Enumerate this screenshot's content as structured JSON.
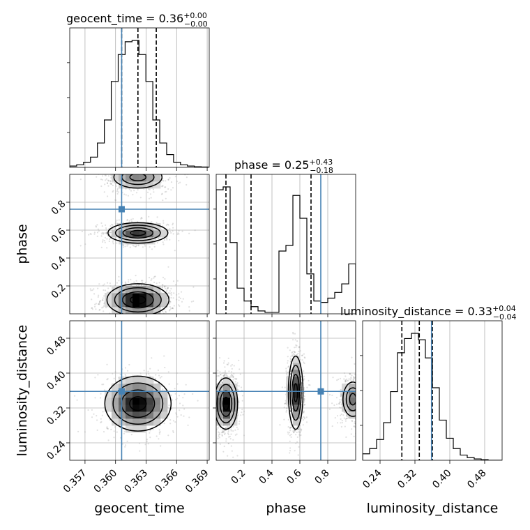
{
  "chart_data": {
    "type": "corner",
    "parameters": [
      "geocent_time",
      "phase",
      "luminosity_distance"
    ],
    "axis_labels": [
      "geocent_time",
      "phase",
      "luminosity_distance"
    ],
    "ranges": [
      [
        0.3555,
        0.3692
      ],
      [
        0.0,
        1.0
      ],
      [
        0.2,
        0.52
      ]
    ],
    "ticks": [
      {
        "values": [
          0.357,
          0.36,
          0.363,
          0.366,
          0.369
        ],
        "labels": [
          "0.357",
          "0.360",
          "0.363",
          "0.366",
          "0.369"
        ]
      },
      {
        "values": [
          0.2,
          0.4,
          0.6,
          0.8
        ],
        "labels": [
          "0.2",
          "0.4",
          "0.6",
          "0.8"
        ]
      },
      {
        "values": [
          0.24,
          0.32,
          0.4,
          0.48
        ],
        "labels": [
          "0.24",
          "0.32",
          "0.40",
          "0.48"
        ]
      }
    ],
    "truths": [
      0.3606,
      0.75,
      0.358
    ],
    "truth_color": "#4682b4",
    "titles": [
      {
        "base": "geocent_time = 0.36",
        "plus": "+0.00",
        "minus": "−0.00"
      },
      {
        "base": "phase = 0.25",
        "plus": "+0.43",
        "minus": "−0.18"
      },
      {
        "base": "luminosity_distance = 0.33",
        "plus": "+0.04",
        "minus": "−0.04"
      }
    ],
    "quantiles": [
      [
        0.3606,
        0.3622,
        0.364
      ],
      [
        0.07,
        0.25,
        0.68
      ],
      [
        0.29,
        0.33,
        0.36
      ]
    ],
    "histograms": [
      {
        "edges": [
          0.3555,
          0.35618,
          0.35686,
          0.35754,
          0.35822,
          0.3589,
          0.35958,
          0.36026,
          0.36094,
          0.36162,
          0.3623,
          0.36298,
          0.36366,
          0.36434,
          0.36502,
          0.3657,
          0.36638,
          0.36706,
          0.36774,
          0.36842,
          0.3691
        ],
        "counts": [
          0.01,
          0.02,
          0.04,
          0.08,
          0.19,
          0.37,
          0.67,
          0.88,
          0.98,
          0.99,
          0.88,
          0.67,
          0.37,
          0.19,
          0.1,
          0.04,
          0.02,
          0.01,
          0.005,
          0.003
        ]
      },
      {
        "edges": [
          0.0,
          0.05,
          0.1,
          0.15,
          0.2,
          0.25,
          0.3,
          0.35,
          0.4,
          0.45,
          0.5,
          0.55,
          0.6,
          0.65,
          0.7,
          0.75,
          0.8,
          0.85,
          0.9,
          0.95,
          1.0
        ],
        "counts": [
          0.87,
          0.89,
          0.5,
          0.18,
          0.09,
          0.05,
          0.02,
          0.01,
          0.01,
          0.44,
          0.48,
          0.83,
          0.67,
          0.28,
          0.09,
          0.08,
          0.11,
          0.15,
          0.21,
          0.35
        ]
      },
      {
        "edges": [
          0.2,
          0.216,
          0.232,
          0.248,
          0.264,
          0.28,
          0.296,
          0.312,
          0.328,
          0.344,
          0.36,
          0.376,
          0.392,
          0.408,
          0.424,
          0.44,
          0.456,
          0.472,
          0.488,
          0.504,
          0.52
        ],
        "counts": [
          0.05,
          0.09,
          0.16,
          0.29,
          0.53,
          0.83,
          0.94,
          0.98,
          0.93,
          0.79,
          0.56,
          0.31,
          0.17,
          0.09,
          0.04,
          0.02,
          0.01,
          0.005,
          0.0,
          0.0
        ]
      }
    ],
    "joint": [
      {
        "x_param": 0,
        "y_param": 1,
        "modes": [
          {
            "center": [
              0.3622,
              0.1
            ],
            "sigma": [
              0.00145,
              0.055
            ],
            "weight": 1.0
          },
          {
            "center": [
              0.3622,
              0.58
            ],
            "sigma": [
              0.0014,
              0.035
            ],
            "weight": 0.72
          },
          {
            "center": [
              0.3622,
              0.98
            ],
            "sigma": [
              0.0015,
              0.05
            ],
            "weight": 0.45
          }
        ]
      },
      {
        "x_param": 0,
        "y_param": 2,
        "modes": [
          {
            "center": [
              0.3622,
              0.33
            ],
            "sigma": [
              0.00155,
              0.03
            ],
            "weight": 1.0
          }
        ]
      },
      {
        "x_param": 1,
        "y_param": 2,
        "modes": [
          {
            "center": [
              0.07,
              0.33
            ],
            "sigma": [
              0.04,
              0.028
            ],
            "weight": 1.0
          },
          {
            "center": [
              0.57,
              0.355
            ],
            "sigma": [
              0.025,
              0.04
            ],
            "weight": 0.85
          },
          {
            "center": [
              0.98,
              0.34
            ],
            "sigma": [
              0.045,
              0.025
            ],
            "weight": 0.55
          }
        ]
      }
    ],
    "grid": true
  }
}
